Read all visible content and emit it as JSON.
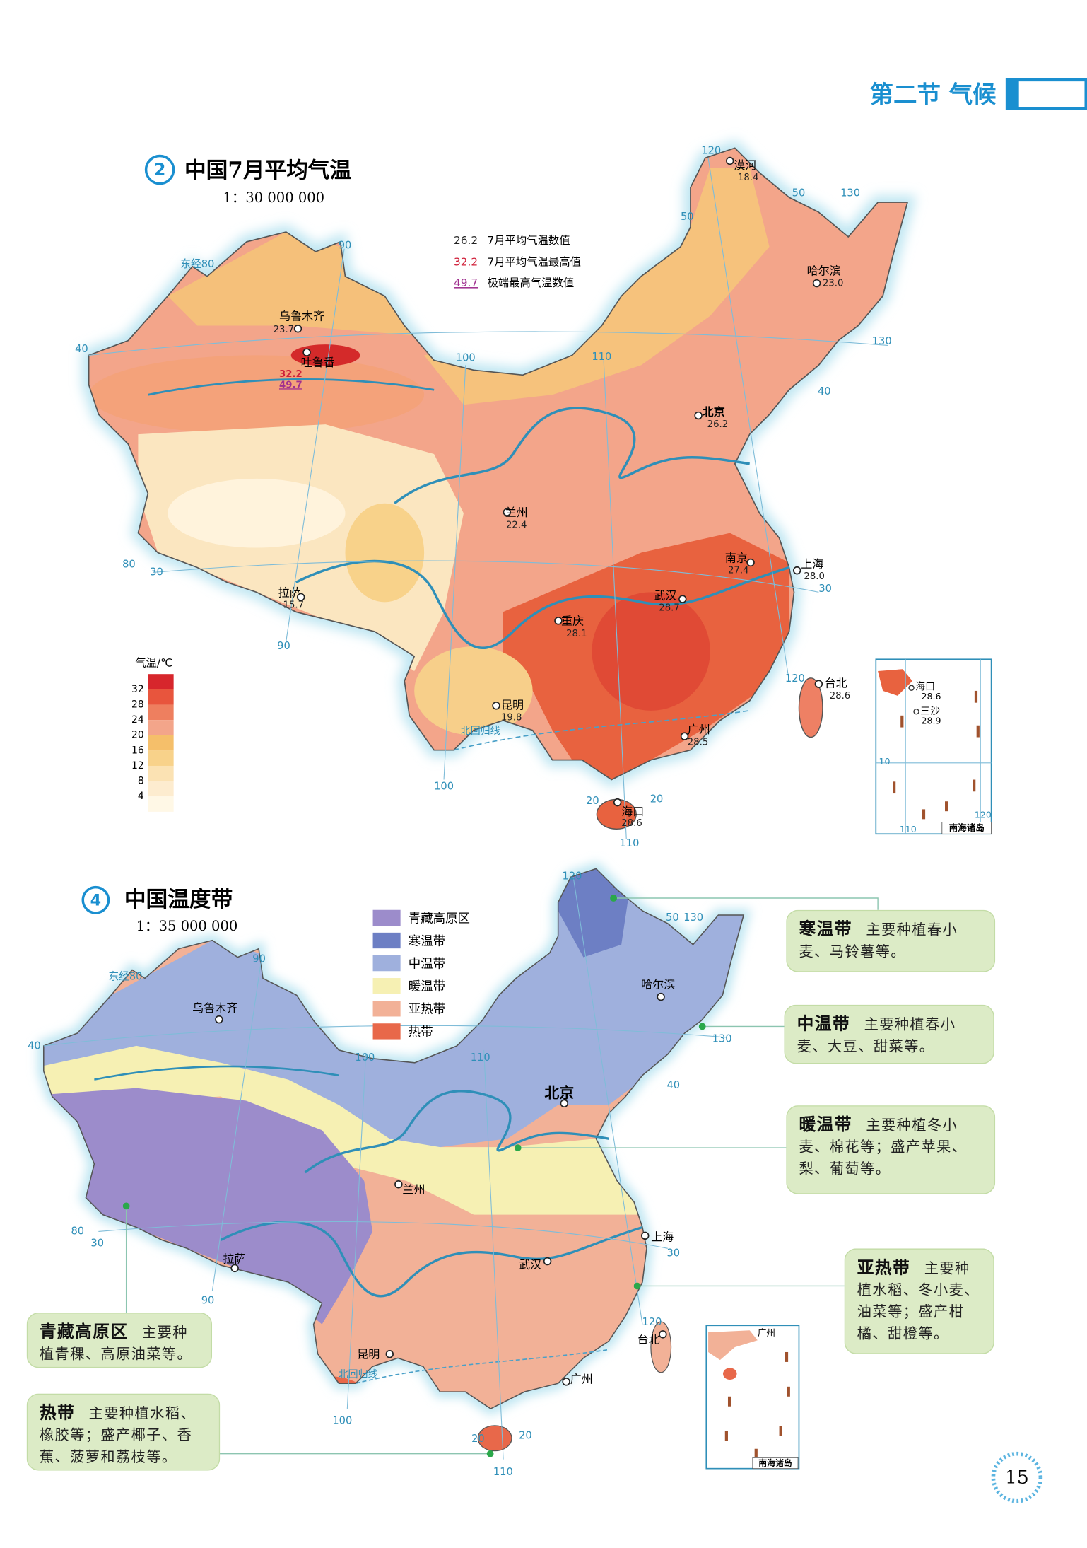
{
  "header": {
    "section": "第二节 气候"
  },
  "map_july": {
    "number": "2",
    "title": "中国7月平均气温",
    "scale": "1：30 000 000",
    "legend": [
      {
        "sample": "26.2",
        "text": "7月平均气温数值"
      },
      {
        "sample": "32.2",
        "text": "7月平均气温最高值"
      },
      {
        "sample": "49.7",
        "text": "极端最高气温数值"
      }
    ],
    "colorbar": {
      "title": "气温/℃",
      "ticks": [
        32,
        28,
        24,
        20,
        16,
        12,
        8,
        4
      ]
    },
    "cities": [
      {
        "name": "漠河",
        "value": "18.4"
      },
      {
        "name": "哈尔滨",
        "value": "23.0"
      },
      {
        "name": "乌鲁木齐",
        "value": "23.7"
      },
      {
        "name": "吐鲁番",
        "value": "32.2",
        "extreme": "49.7"
      },
      {
        "name": "北京",
        "value": "26.2"
      },
      {
        "name": "兰州",
        "value": "22.4"
      },
      {
        "name": "拉萨",
        "value": "15.7"
      },
      {
        "name": "重庆",
        "value": "28.1"
      },
      {
        "name": "武汉",
        "value": "28.7"
      },
      {
        "name": "南京",
        "value": "27.4"
      },
      {
        "name": "上海",
        "value": "28.0"
      },
      {
        "name": "昆明",
        "value": "19.8"
      },
      {
        "name": "广州",
        "value": "28.5"
      },
      {
        "name": "台北",
        "value": "28.6"
      },
      {
        "name": "海口",
        "value": "28.6"
      }
    ],
    "graticule": [
      "120",
      "50",
      "130",
      "50",
      "东经80",
      "90",
      "40",
      "100",
      "110",
      "130",
      "40",
      "80",
      "30",
      "30",
      "90",
      "120",
      "100",
      "110",
      "20",
      "20"
    ],
    "tropic": "北回归线",
    "inset": {
      "label": "南海诸岛",
      "cities": [
        {
          "name": "海口",
          "value": "28.6"
        },
        {
          "name": "三沙",
          "value": "28.9"
        }
      ],
      "graticule": [
        "10",
        "110",
        "120"
      ]
    }
  },
  "map_zones": {
    "number": "4",
    "title": "中国温度带",
    "scale": "1：35 000 000",
    "legend": [
      "青藏高原区",
      "寒温带",
      "中温带",
      "暖温带",
      "亚热带",
      "热带"
    ],
    "cities": [
      "哈尔滨",
      "乌鲁木齐",
      "北京",
      "兰州",
      "上海",
      "拉萨",
      "武汉",
      "台北",
      "昆明",
      "广州"
    ],
    "graticule": [
      "120",
      "50",
      "130",
      "东经80",
      "90",
      "40",
      "100",
      "110",
      "40",
      "130",
      "80",
      "30",
      "30",
      "90",
      "120",
      "100",
      "20",
      "20",
      "110"
    ],
    "tropic": "北回归线",
    "inset": {
      "label": "南海诸岛",
      "cities": [
        "广州"
      ]
    },
    "notes": [
      {
        "zone": "寒温带",
        "text": "主要种植春小麦、马铃薯等。"
      },
      {
        "zone": "中温带",
        "text": "主要种植春小麦、大豆、甜菜等。"
      },
      {
        "zone": "暖温带",
        "text": "主要种植冬小麦、棉花等；盛产苹果、梨、葡萄等。"
      },
      {
        "zone": "亚热带",
        "text": "主要种植水稻、冬小麦、油菜等；盛产柑橘、甜橙等。"
      },
      {
        "zone": "青藏高原区",
        "text": "主要种植青稞、高原油菜等。"
      },
      {
        "zone": "热带",
        "text": "主要种植水稻、橡胶等；盛产椰子、香蕉、菠萝和荔枝等。"
      }
    ]
  },
  "page_number": "15"
}
